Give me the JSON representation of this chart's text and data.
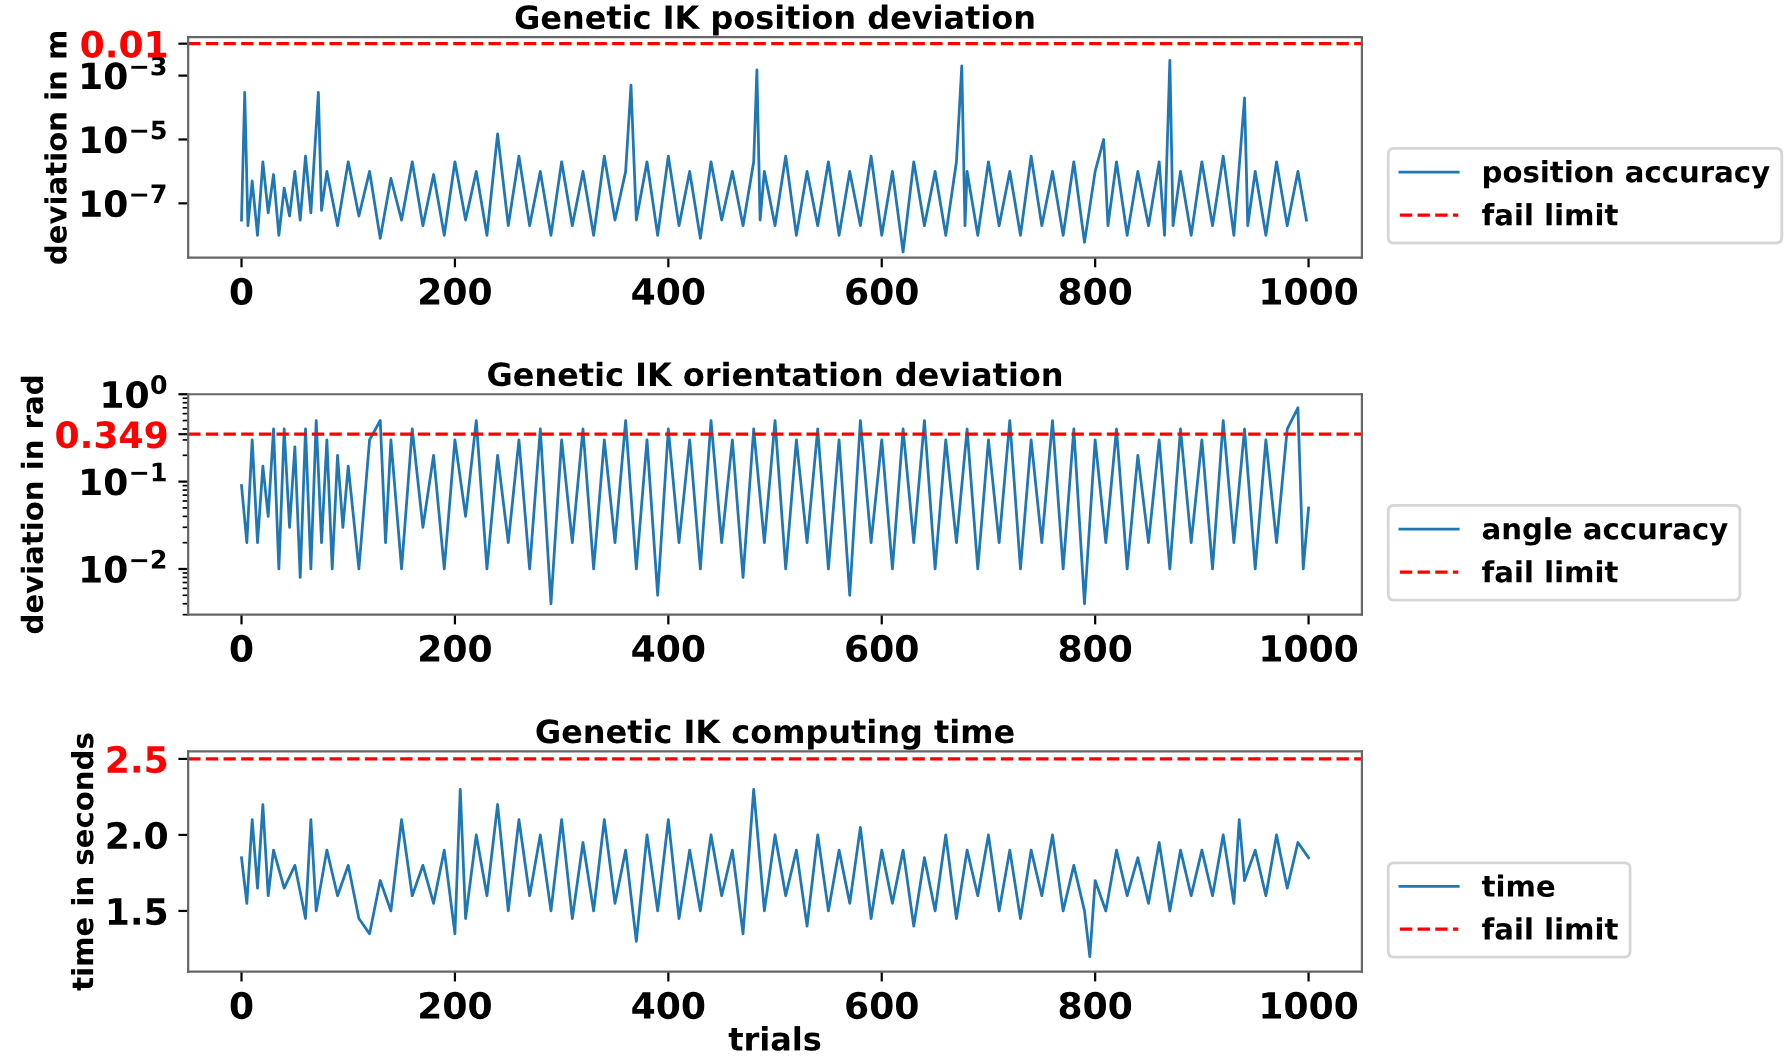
{
  "chart_data": [
    {
      "type": "line",
      "title": "Genetic IK position deviation",
      "ylabel": "deviation in m",
      "log": "y",
      "xlim": [
        -50,
        1050
      ],
      "xticks": [
        0,
        200,
        400,
        600,
        800,
        1000
      ],
      "ylim": [
        2e-09,
        0.016
      ],
      "yticks": [
        {
          "value": 1e-07,
          "label": "10$^{−7}$"
        },
        {
          "value": 1e-05,
          "label": "10$^{−5}$"
        },
        {
          "value": 0.001,
          "label": "10$^{−3}$"
        },
        0.01
      ],
      "grid": false,
      "legend": "lower right",
      "series": [
        {
          "name": "position accuracy",
          "color": "#1f77b4",
          "x": [
            0,
            3,
            6,
            10,
            15,
            20,
            25,
            30,
            35,
            40,
            45,
            50,
            55,
            60,
            65,
            72,
            75,
            80,
            90,
            100,
            110,
            120,
            130,
            140,
            150,
            160,
            170,
            180,
            190,
            200,
            210,
            220,
            230,
            240,
            250,
            260,
            270,
            280,
            290,
            300,
            310,
            320,
            330,
            340,
            350,
            360,
            365,
            370,
            380,
            390,
            400,
            410,
            420,
            430,
            440,
            450,
            460,
            470,
            480,
            483,
            486,
            490,
            500,
            510,
            520,
            530,
            540,
            550,
            560,
            570,
            580,
            590,
            600,
            610,
            620,
            630,
            640,
            650,
            660,
            670,
            675,
            678,
            680,
            690,
            700,
            710,
            720,
            730,
            740,
            750,
            760,
            770,
            780,
            790,
            800,
            808,
            812,
            820,
            830,
            840,
            850,
            860,
            865,
            870,
            873,
            880,
            890,
            900,
            910,
            920,
            930,
            940,
            943,
            950,
            960,
            970,
            980,
            990,
            998
          ],
          "values": [
            3e-08,
            0.0003,
            2e-08,
            5e-07,
            1e-08,
            2e-06,
            5e-08,
            8e-07,
            1e-08,
            3e-07,
            4e-08,
            1e-06,
            3e-08,
            3e-06,
            5e-08,
            0.0003,
            6e-08,
            1e-06,
            2e-08,
            2e-06,
            4e-08,
            1e-06,
            8e-09,
            6e-07,
            3e-08,
            2e-06,
            2e-08,
            8e-07,
            1e-08,
            2e-06,
            3e-08,
            1e-06,
            1e-08,
            1.5e-05,
            2e-08,
            3e-06,
            2e-08,
            1e-06,
            1e-08,
            2e-06,
            2e-08,
            1e-06,
            1e-08,
            3e-06,
            3e-08,
            1e-06,
            0.0005,
            3e-08,
            2e-06,
            1e-08,
            3e-06,
            2e-08,
            1e-06,
            8e-09,
            2e-06,
            3e-08,
            1e-06,
            2e-08,
            2e-06,
            0.0015,
            3e-08,
            1e-06,
            2e-08,
            3e-06,
            1e-08,
            1e-06,
            2e-08,
            2e-06,
            1e-08,
            1e-06,
            2e-08,
            3e-06,
            1e-08,
            1e-06,
            3e-09,
            2e-06,
            2e-08,
            1e-06,
            1e-08,
            2e-06,
            0.002,
            2e-08,
            1e-06,
            1e-08,
            2e-06,
            2e-08,
            1e-06,
            1e-08,
            3e-06,
            2e-08,
            1e-06,
            1e-08,
            2e-06,
            6e-09,
            1e-06,
            1e-05,
            2e-08,
            2e-06,
            1e-08,
            1e-06,
            2e-08,
            2e-06,
            1e-08,
            0.003,
            2e-08,
            1e-06,
            1e-08,
            2e-06,
            2e-08,
            3e-06,
            1e-08,
            0.0002,
            2e-08,
            1e-06,
            1e-08,
            2e-06,
            2e-08,
            1e-06,
            3e-08
          ]
        }
      ],
      "ref_lines": [
        {
          "axis": "y",
          "value": 0.01,
          "label": "fail limit",
          "color": "#ff0000",
          "line_style": "dashed"
        }
      ]
    },
    {
      "type": "line",
      "title": "Genetic IK orientation deviation",
      "ylabel": "deviation in rad",
      "log": "y",
      "xlim": [
        -50,
        1050
      ],
      "xticks": [
        0,
        200,
        400,
        600,
        800,
        1000
      ],
      "ylim": [
        0.003,
        1.0
      ],
      "yticks": [
        {
          "value": 0.01,
          "label": "10$^{−2}$"
        },
        {
          "value": 0.1,
          "label": "10$^{−1}$"
        },
        0.349,
        {
          "value": 1,
          "label": "10$^{0}$"
        }
      ],
      "grid": false,
      "legend": "lower right",
      "series": [
        {
          "name": "angle accuracy",
          "color": "#1f77b4",
          "x": [
            0,
            5,
            10,
            15,
            20,
            25,
            30,
            35,
            40,
            45,
            50,
            55,
            60,
            65,
            70,
            75,
            80,
            85,
            90,
            95,
            100,
            110,
            120,
            130,
            135,
            140,
            150,
            160,
            170,
            180,
            190,
            200,
            210,
            220,
            230,
            240,
            250,
            260,
            270,
            280,
            290,
            300,
            310,
            320,
            330,
            340,
            350,
            360,
            370,
            380,
            390,
            400,
            410,
            420,
            430,
            440,
            450,
            460,
            470,
            480,
            490,
            500,
            510,
            520,
            530,
            540,
            550,
            560,
            570,
            580,
            590,
            600,
            610,
            620,
            630,
            640,
            650,
            660,
            670,
            680,
            690,
            700,
            710,
            720,
            730,
            740,
            750,
            760,
            770,
            780,
            790,
            800,
            810,
            820,
            830,
            840,
            850,
            860,
            870,
            880,
            890,
            900,
            910,
            920,
            930,
            940,
            950,
            960,
            970,
            980,
            990,
            995,
            1000
          ],
          "values": [
            0.09,
            0.02,
            0.3,
            0.02,
            0.15,
            0.04,
            0.4,
            0.01,
            0.4,
            0.03,
            0.25,
            0.008,
            0.4,
            0.01,
            0.5,
            0.02,
            0.3,
            0.01,
            0.2,
            0.03,
            0.15,
            0.01,
            0.3,
            0.5,
            0.02,
            0.3,
            0.01,
            0.4,
            0.03,
            0.2,
            0.01,
            0.3,
            0.04,
            0.5,
            0.01,
            0.2,
            0.02,
            0.3,
            0.01,
            0.4,
            0.004,
            0.3,
            0.02,
            0.4,
            0.01,
            0.3,
            0.02,
            0.5,
            0.01,
            0.3,
            0.005,
            0.4,
            0.02,
            0.3,
            0.01,
            0.5,
            0.02,
            0.3,
            0.008,
            0.4,
            0.02,
            0.5,
            0.01,
            0.3,
            0.02,
            0.4,
            0.01,
            0.3,
            0.005,
            0.5,
            0.02,
            0.3,
            0.01,
            0.4,
            0.02,
            0.5,
            0.01,
            0.3,
            0.02,
            0.4,
            0.01,
            0.3,
            0.02,
            0.5,
            0.01,
            0.3,
            0.02,
            0.5,
            0.01,
            0.4,
            0.004,
            0.3,
            0.02,
            0.4,
            0.01,
            0.2,
            0.02,
            0.3,
            0.01,
            0.4,
            0.02,
            0.3,
            0.01,
            0.5,
            0.02,
            0.4,
            0.01,
            0.3,
            0.02,
            0.4,
            0.7,
            0.01,
            0.05
          ]
        }
      ],
      "ref_lines": [
        {
          "axis": "y",
          "value": 0.349,
          "label": "fail limit",
          "color": "#ff0000",
          "line_style": "dashed"
        }
      ]
    },
    {
      "type": "line",
      "title": "Genetic IK computing time",
      "xlabel": "trials",
      "ylabel": "time in seconds",
      "xlim": [
        -50,
        1050
      ],
      "xticks": [
        0,
        200,
        400,
        600,
        800,
        1000
      ],
      "ylim": [
        1.1,
        2.55
      ],
      "yticks": [
        {
          "value": 1.5,
          "label": "1.5"
        },
        {
          "value": 2.0,
          "label": "2.0"
        },
        2.5
      ],
      "grid": false,
      "legend": "lower right",
      "series": [
        {
          "name": "time",
          "color": "#1f77b4",
          "x": [
            0,
            5,
            10,
            15,
            20,
            25,
            30,
            40,
            50,
            60,
            65,
            70,
            80,
            90,
            100,
            110,
            120,
            130,
            140,
            150,
            160,
            170,
            180,
            190,
            200,
            205,
            210,
            220,
            230,
            240,
            250,
            260,
            270,
            280,
            290,
            300,
            310,
            320,
            330,
            340,
            350,
            360,
            370,
            380,
            390,
            400,
            410,
            420,
            430,
            440,
            450,
            460,
            470,
            480,
            490,
            500,
            510,
            520,
            530,
            540,
            550,
            560,
            570,
            580,
            590,
            600,
            610,
            620,
            630,
            640,
            650,
            660,
            670,
            680,
            690,
            700,
            710,
            720,
            730,
            740,
            750,
            760,
            770,
            780,
            790,
            795,
            800,
            810,
            820,
            830,
            840,
            850,
            860,
            870,
            880,
            890,
            900,
            910,
            920,
            930,
            935,
            940,
            950,
            960,
            970,
            980,
            990,
            1000
          ],
          "values": [
            1.85,
            1.55,
            2.1,
            1.65,
            2.2,
            1.6,
            1.9,
            1.65,
            1.8,
            1.45,
            2.1,
            1.5,
            1.9,
            1.6,
            1.8,
            1.45,
            1.35,
            1.7,
            1.5,
            2.1,
            1.6,
            1.8,
            1.55,
            1.9,
            1.35,
            2.3,
            1.45,
            2.0,
            1.6,
            2.2,
            1.5,
            2.1,
            1.6,
            2.0,
            1.5,
            2.1,
            1.45,
            1.95,
            1.5,
            2.1,
            1.55,
            1.9,
            1.3,
            2.0,
            1.5,
            2.1,
            1.45,
            1.9,
            1.5,
            2.0,
            1.6,
            1.9,
            1.35,
            2.3,
            1.5,
            2.0,
            1.6,
            1.9,
            1.4,
            2.0,
            1.5,
            1.9,
            1.55,
            2.05,
            1.45,
            1.9,
            1.55,
            1.9,
            1.4,
            1.85,
            1.5,
            2.0,
            1.45,
            1.9,
            1.6,
            2.0,
            1.5,
            1.9,
            1.45,
            1.9,
            1.6,
            2.0,
            1.5,
            1.8,
            1.5,
            1.2,
            1.7,
            1.5,
            1.9,
            1.6,
            1.85,
            1.55,
            1.95,
            1.5,
            1.9,
            1.6,
            1.9,
            1.6,
            2.0,
            1.55,
            2.1,
            1.7,
            1.9,
            1.6,
            2.0,
            1.65,
            1.95,
            1.85
          ]
        }
      ],
      "ref_lines": [
        {
          "axis": "y",
          "value": 2.5,
          "label": "fail limit",
          "color": "#ff0000",
          "line_style": "dashed"
        }
      ]
    }
  ]
}
